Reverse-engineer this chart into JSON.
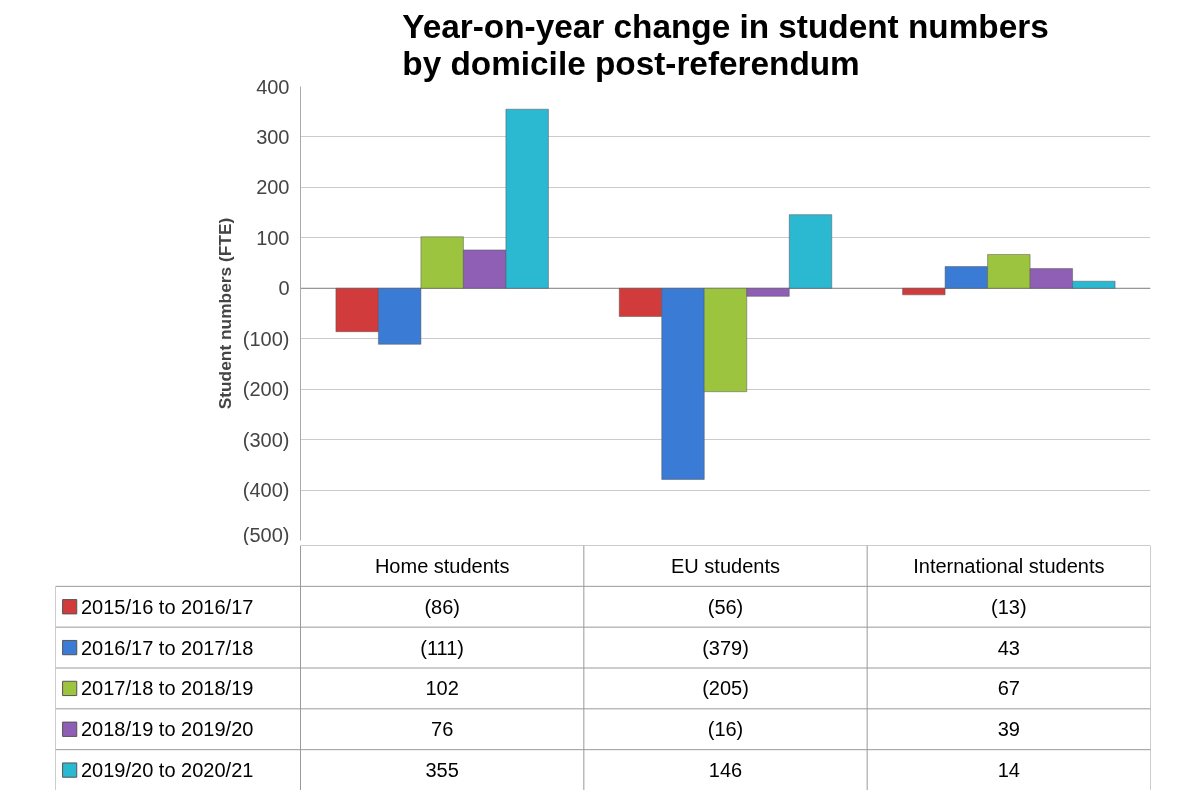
{
  "chart_data": {
    "type": "bar",
    "title": "Year-on-year change in student numbers by domicile post-referendum",
    "ylabel": "Student numbers (FTE)",
    "categories": [
      "Home students",
      "EU students",
      "International students"
    ],
    "series": [
      {
        "name": "2015/16 to 2016/17",
        "color": "#d23b3b",
        "values": [
          -86,
          -56,
          -13
        ],
        "value_labels": [
          "(86)",
          "(56)",
          "(13)"
        ]
      },
      {
        "name": "2016/17 to 2017/18",
        "color": "#3a7bd5",
        "values": [
          -111,
          -379,
          43
        ],
        "value_labels": [
          "(111)",
          "(379)",
          "43"
        ]
      },
      {
        "name": "2017/18 to 2018/19",
        "color": "#9cc43e",
        "values": [
          102,
          -205,
          67
        ],
        "value_labels": [
          "102",
          "(205)",
          "67"
        ]
      },
      {
        "name": "2018/19 to 2019/20",
        "color": "#8e5fb5",
        "values": [
          76,
          -16,
          39
        ],
        "value_labels": [
          "76",
          "(16)",
          "39"
        ]
      },
      {
        "name": "2019/20 to 2020/21",
        "color": "#2bb8d1",
        "values": [
          355,
          146,
          14
        ],
        "value_labels": [
          "355",
          "146",
          "14"
        ]
      }
    ],
    "ylim": [
      -500,
      400
    ],
    "yticks": [
      400,
      300,
      200,
      100,
      0,
      {
        "value": -100,
        "label": "(100)"
      },
      {
        "value": -200,
        "label": "(200)"
      },
      {
        "value": -300,
        "label": "(300)"
      },
      {
        "value": -400,
        "label": "(400)"
      },
      {
        "value": -500,
        "label": "(500)"
      }
    ],
    "grid": "y",
    "legend": "bottom"
  }
}
